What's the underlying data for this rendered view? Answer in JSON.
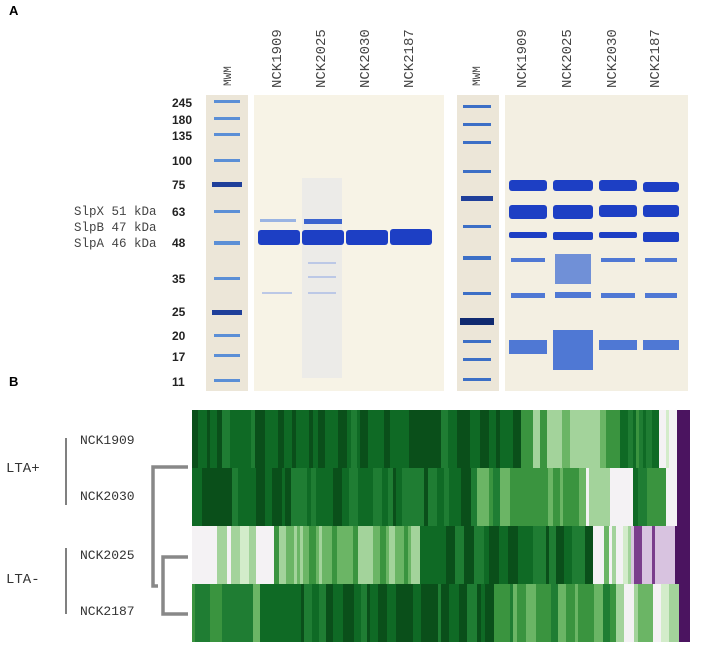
{
  "panel_a": {
    "letter": "A",
    "lane_labels": [
      "MWM",
      "NCK1909",
      "NCK2025",
      "NCK2030",
      "NCK2187",
      "MWM",
      "NCK1909",
      "NCK2025",
      "NCK2030",
      "NCK2187"
    ],
    "ladder": [
      "245",
      "180",
      "135",
      "100",
      "75",
      "63",
      "48",
      "35",
      "25",
      "20",
      "17",
      "11"
    ],
    "band_annotations": [
      "SlpX 51 kDa",
      "SlpB 47 kDa",
      "SlpA 46 kDa"
    ],
    "colors": {
      "gel_bg": "#f5f1e4",
      "band_dark": "#1d3fc4",
      "band_light": "#7fa3dd"
    }
  },
  "panel_b": {
    "letter": "B",
    "rows": [
      "NCK1909",
      "NCK2030",
      "NCK2025",
      "NCK2187"
    ],
    "groups": [
      "LTA+",
      "LTA-"
    ],
    "colors": {
      "dark_green": "#0b5a1e",
      "mid_green": "#3a8f3f",
      "light_green": "#b9e2b0",
      "white": "#f4f2f4",
      "purple": "#5a1a6e"
    }
  }
}
